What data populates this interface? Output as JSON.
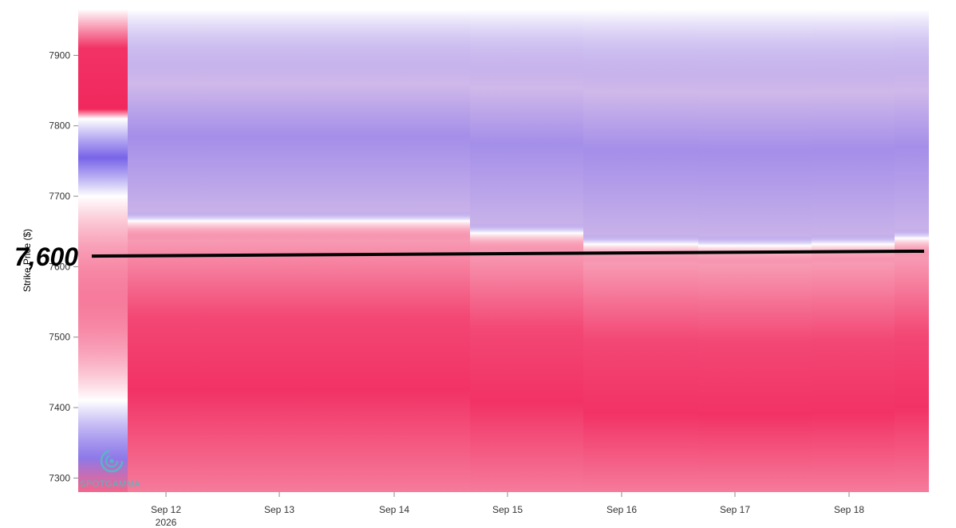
{
  "brand": {
    "name": "SPOTGAMMA",
    "icon": "spotgamma-logo-icon",
    "color": "#56b7c4"
  },
  "colors": {
    "positive": "#f0134d",
    "neutral": "#ffffff",
    "negative": "#6a56e8",
    "spot_line": "#000000"
  },
  "chart_data": {
    "type": "heatmap",
    "title": "",
    "xlabel": "",
    "ylabel": "Strike Price ($)",
    "x_ticks": [
      {
        "label": "Sep 12",
        "sub": "2026"
      },
      {
        "label": "Sep 13",
        "sub": ""
      },
      {
        "label": "Sep 14",
        "sub": ""
      },
      {
        "label": "Sep 15",
        "sub": ""
      },
      {
        "label": "Sep 16",
        "sub": ""
      },
      {
        "label": "Sep 17",
        "sub": ""
      },
      {
        "label": "Sep 18",
        "sub": ""
      }
    ],
    "y_ticks": [
      7300,
      7400,
      7500,
      7600,
      7700,
      7800,
      7900
    ],
    "ylim": [
      7280,
      7965
    ],
    "xlim": [
      "Sep 11",
      "Sep 18"
    ],
    "grid": false,
    "legend": "none",
    "spot_line": {
      "label": "7,600",
      "start": {
        "date": "Sep 11",
        "value": 7615
      },
      "end": {
        "date": "Sep 18",
        "value": 7622
      }
    },
    "columns": [
      {
        "start": "Sep 11",
        "end": "Sep 11",
        "zero_strike": 7810,
        "band_lo": 7410,
        "band_hi": 7700,
        "sign_top": 1,
        "sign_bottom": -1
      },
      {
        "start": "Sep 11",
        "end": "Sep 14",
        "zero_strike": 7665,
        "band_lo": null,
        "band_hi": null,
        "sign_top": -1,
        "sign_bottom": 1
      },
      {
        "start": "Sep 14",
        "end": "Sep 15",
        "zero_strike": 7648,
        "band_lo": null,
        "band_hi": null,
        "sign_top": -1,
        "sign_bottom": 1
      },
      {
        "start": "Sep 15",
        "end": "Sep 16",
        "zero_strike": 7632,
        "band_lo": null,
        "band_hi": null,
        "sign_top": -1,
        "sign_bottom": 1
      },
      {
        "start": "Sep 16",
        "end": "Sep 17",
        "zero_strike": 7630,
        "band_lo": null,
        "band_hi": null,
        "sign_top": -1,
        "sign_bottom": 1
      },
      {
        "start": "Sep 17",
        "end": "Sep 18",
        "zero_strike": 7632,
        "band_lo": null,
        "band_hi": null,
        "sign_top": -1,
        "sign_bottom": 1
      },
      {
        "start": "Sep 18",
        "end": "Sep 18",
        "zero_strike": 7640,
        "band_lo": null,
        "band_hi": null,
        "sign_top": -1,
        "sign_bottom": 1
      }
    ]
  }
}
